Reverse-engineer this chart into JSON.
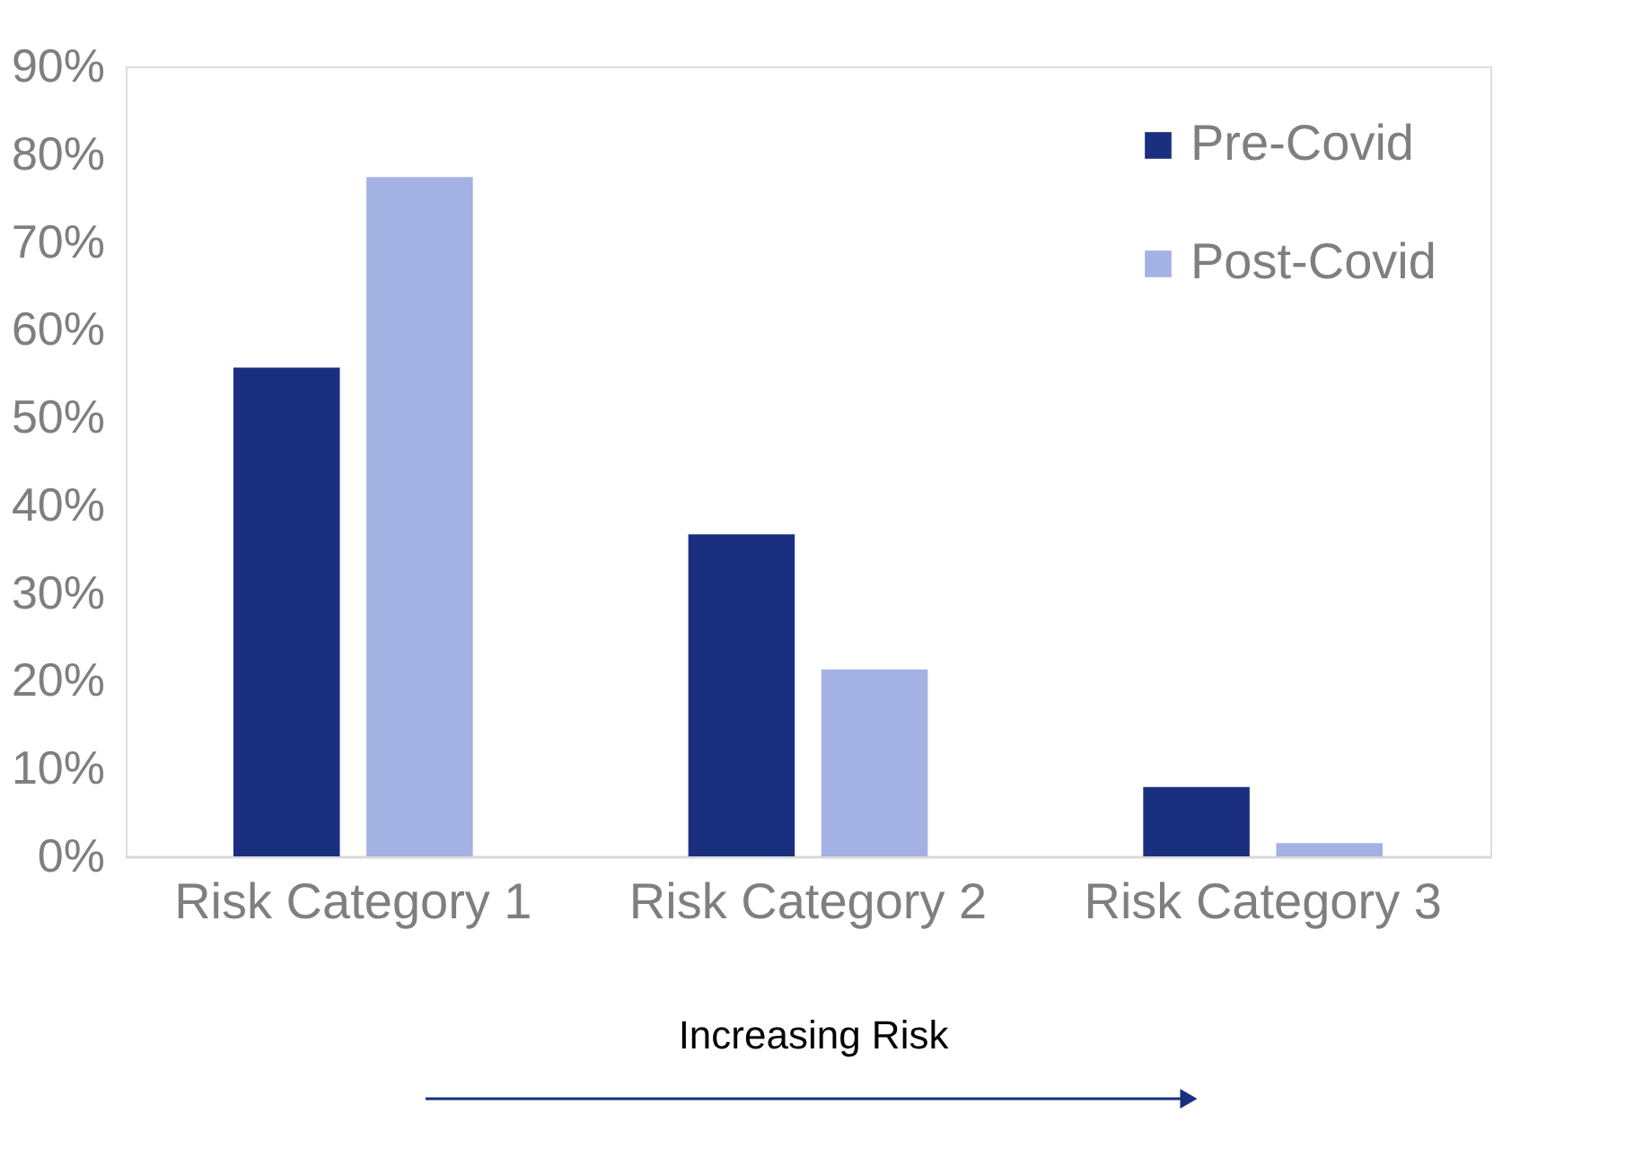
{
  "chart_data": {
    "type": "bar",
    "categories": [
      "Risk Category 1",
      "Risk Category 2",
      "Risk Category 3"
    ],
    "series": [
      {
        "name": "Pre-Covid",
        "color": "#1a2f80",
        "values": [
          55.7,
          36.7,
          7.9
        ]
      },
      {
        "name": "Post-Covid",
        "color": "#a3b1e3",
        "values": [
          77.4,
          21.3,
          1.5
        ]
      }
    ],
    "ylim": [
      0,
      90
    ],
    "yticks": [
      {
        "value": 0,
        "label": "0%"
      },
      {
        "value": 10,
        "label": "10%"
      },
      {
        "value": 20,
        "label": "20%"
      },
      {
        "value": 30,
        "label": "30%"
      },
      {
        "value": 40,
        "label": "40%"
      },
      {
        "value": 50,
        "label": "50%"
      },
      {
        "value": 60,
        "label": "60%"
      },
      {
        "value": 70,
        "label": "70%"
      },
      {
        "value": 80,
        "label": "80%"
      },
      {
        "value": 90,
        "label": "90%"
      }
    ],
    "grid": false,
    "legend": "top right",
    "annotations": [
      "Increasing Risk"
    ]
  }
}
